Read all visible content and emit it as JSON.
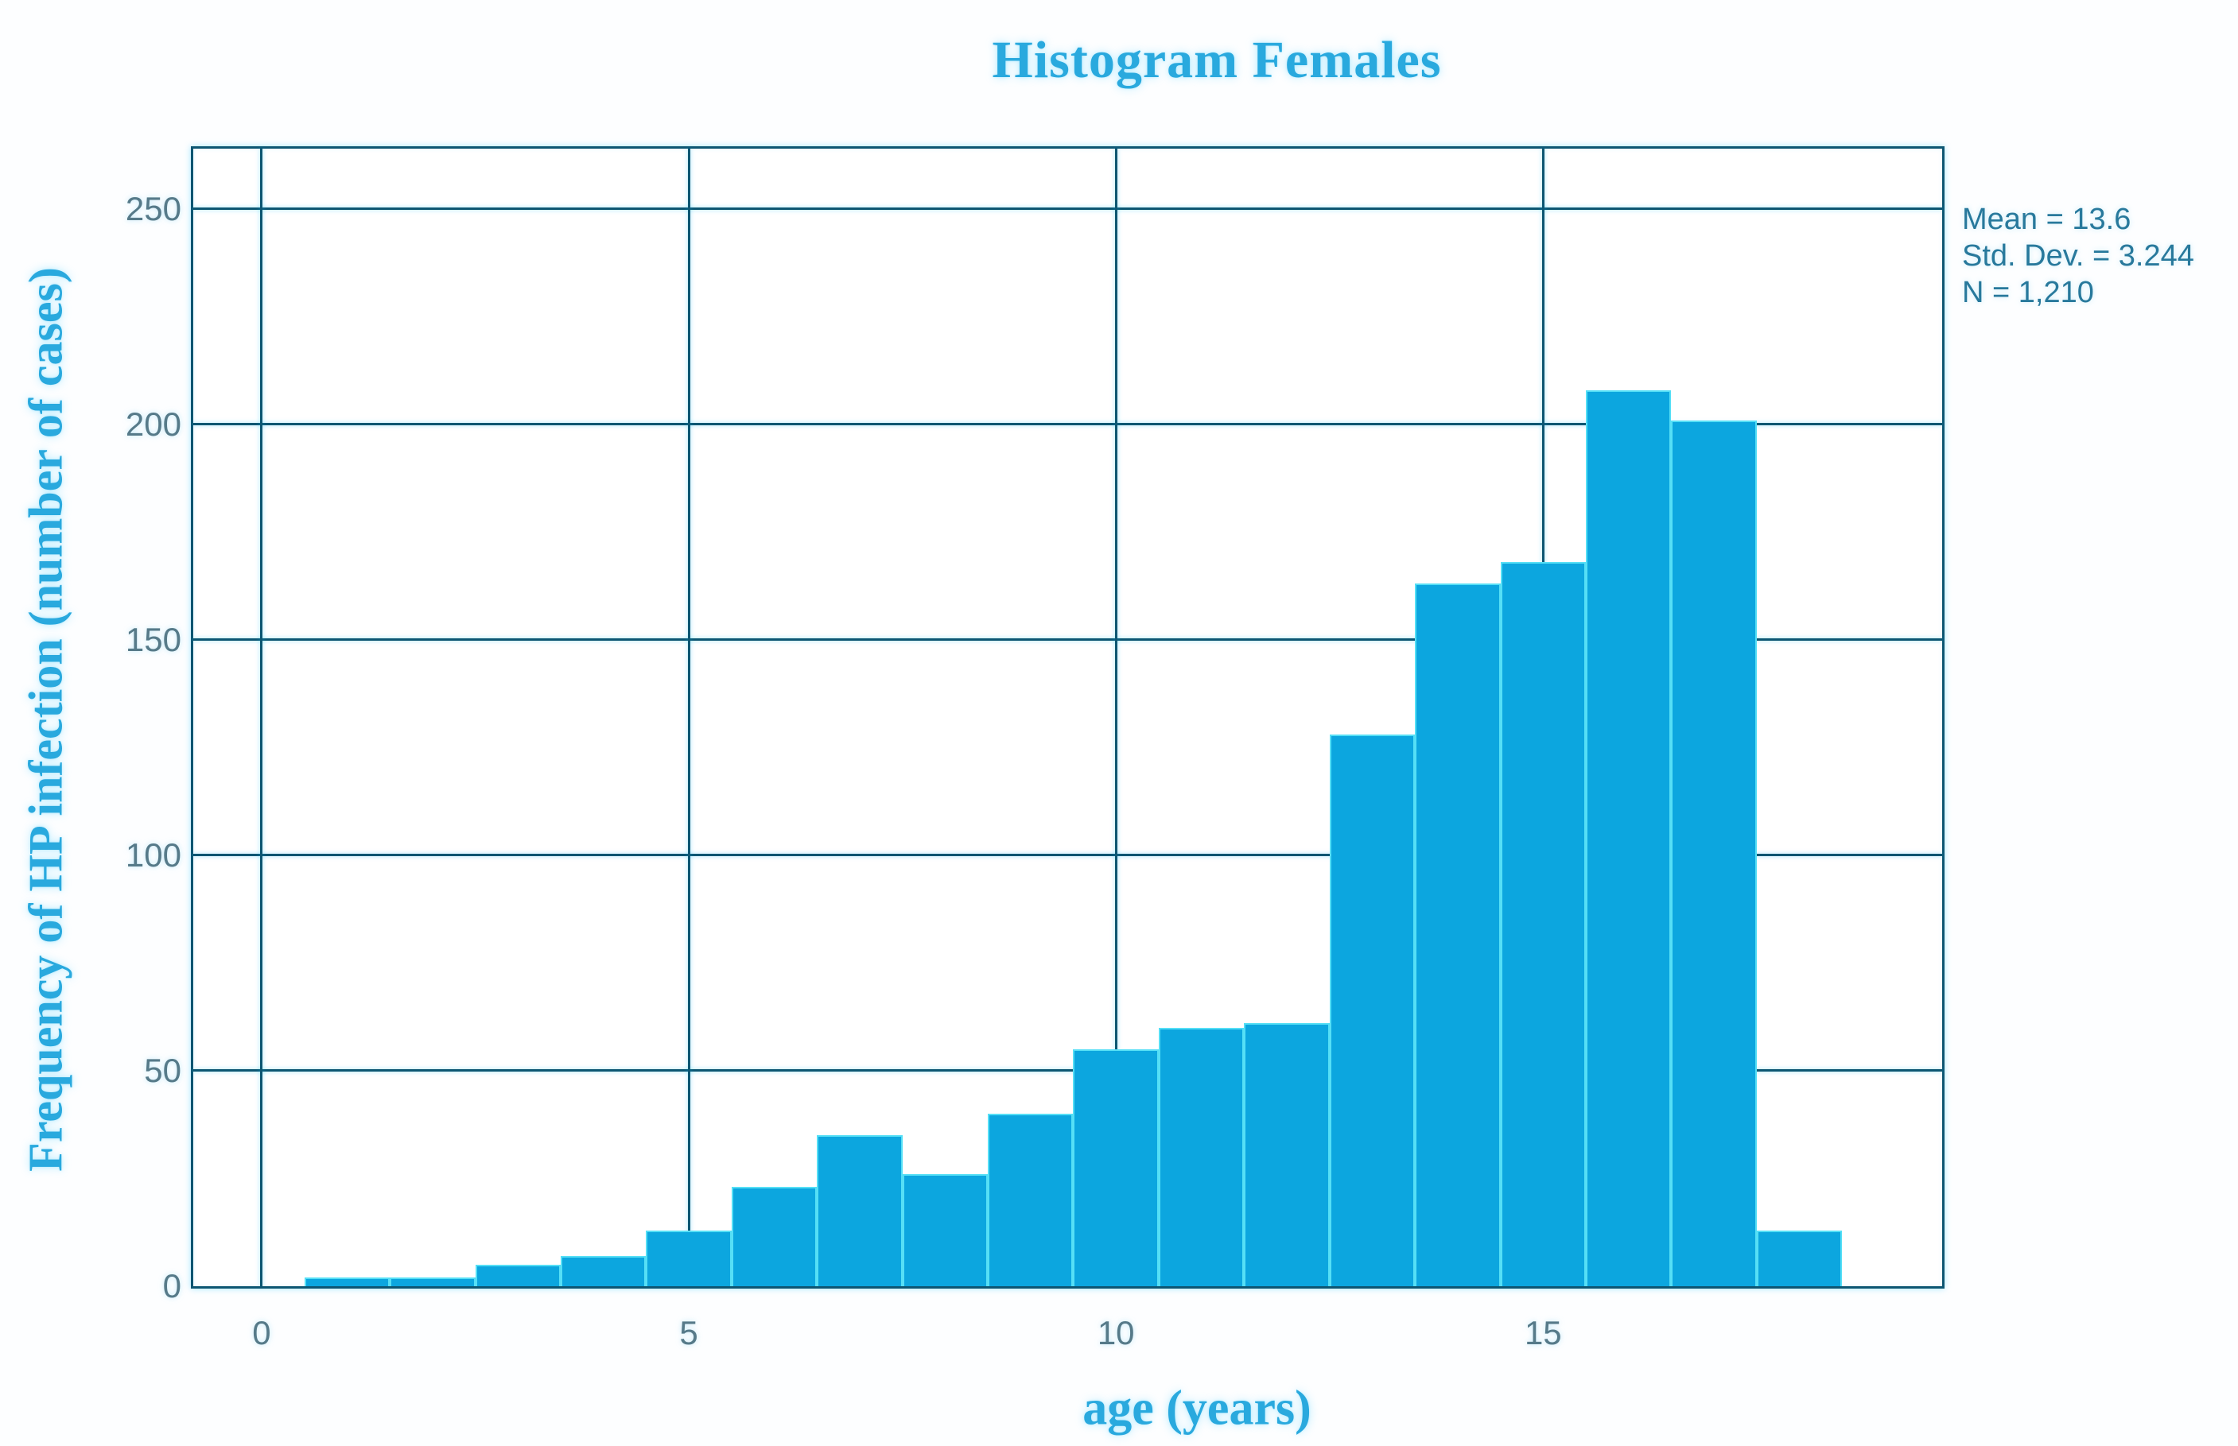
{
  "chart_data": {
    "type": "bar",
    "subtype": "histogram",
    "title": "Histogram Females",
    "xlabel": "age (years)",
    "ylabel": "Frequency of HP infection (number of cases)",
    "categories": [
      1,
      2,
      3,
      4,
      5,
      6,
      7,
      8,
      9,
      10,
      11,
      12,
      13,
      14,
      15,
      16,
      17,
      18
    ],
    "values": [
      2,
      2,
      5,
      7,
      13,
      23,
      35,
      26,
      40,
      55,
      60,
      61,
      128,
      163,
      168,
      208,
      201,
      13
    ],
    "bin_width": 1,
    "xticks": [
      0,
      5,
      10,
      15
    ],
    "yticks": [
      0,
      50,
      100,
      150,
      200,
      250
    ],
    "xlim": [
      -0.8,
      19.67
    ],
    "ylim": [
      0,
      264
    ],
    "grid": true,
    "legend": "none",
    "annotations": {
      "mean": "Mean = 13.6",
      "std_dev": "Std. Dev. = 3.244",
      "n": "N = 1,210"
    },
    "colors": {
      "bar_fill": "#0ca6df",
      "bar_edge": "#55dff6",
      "grid_frame": "#0d5672",
      "serif_text": "#29a9de",
      "tick_text": "#567a89",
      "stats_text": "#28799c",
      "background": "#ffffff"
    }
  }
}
